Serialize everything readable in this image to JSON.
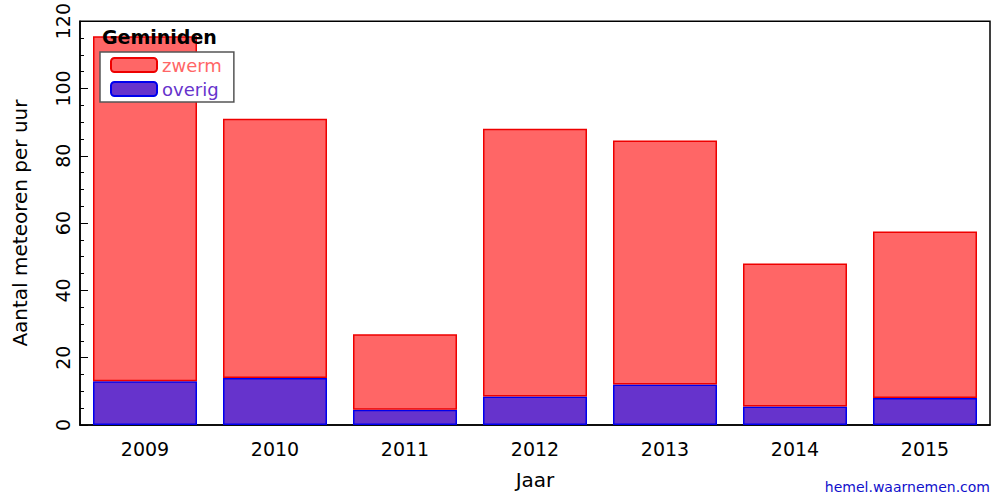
{
  "chart_data": {
    "type": "bar",
    "title": "Geminiden",
    "x_label": "Jaar",
    "y_label": "Aantal meteoren per uur",
    "source": "hemel.waarnemen.com",
    "categories": [
      "2009",
      "2010",
      "2011",
      "2012",
      "2013",
      "2014",
      "2015"
    ],
    "series": [
      {
        "name": "overig",
        "color": "#6633cc",
        "values": [
          13,
          14,
          4.5,
          8.5,
          12,
          5.5,
          8
        ]
      },
      {
        "name": "zwerm",
        "color": "#ff6666",
        "values": [
          102.5,
          77,
          22.5,
          79.5,
          72.5,
          42.5,
          49.5
        ]
      }
    ],
    "legend_order": [
      "zwerm",
      "overig"
    ],
    "stacked": true,
    "ylim": [
      0,
      120
    ],
    "yticks": [
      0,
      20,
      40,
      60,
      80,
      100,
      120
    ],
    "grid": false,
    "legend": "upper left"
  }
}
